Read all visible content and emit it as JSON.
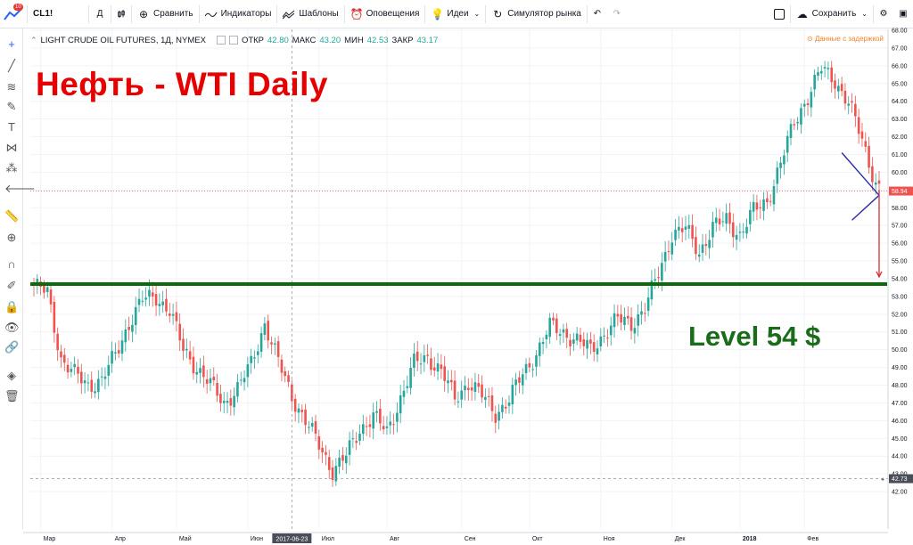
{
  "toolbar": {
    "symbol": "CL1!",
    "interval": "Д",
    "compare_label": "Сравнить",
    "indicators_label": "Индикаторы",
    "templates_label": "Шаблоны",
    "alerts_label": "Оповещения",
    "ideas_label": "Идеи",
    "simulator_label": "Симулятор рынка",
    "save_label": "Сохранить",
    "notification_count": "10"
  },
  "legend": {
    "name": "LIGHT CRUDE OIL FUTURES, 1Д, NYMEX",
    "open_label": "ОТКР",
    "open_value": "42.80",
    "high_label": "МАКС",
    "high_value": "43.20",
    "low_label": "МИН",
    "low_value": "42.53",
    "close_label": "ЗАКР",
    "close_value": "43.17",
    "delay_notice": "Данные с задержкой"
  },
  "annotations": {
    "title": "Нефть - WTI Daily",
    "level_label": "Level 54 $"
  },
  "colors": {
    "up": "#26a69a",
    "down": "#ef5350",
    "level_line": "#0a6b0a",
    "title": "#e60000",
    "delay": "#f0832a"
  },
  "chart_data": {
    "type": "candlestick",
    "symbol": "CL1!",
    "ylim": [
      41.0,
      68.0
    ],
    "yticks": [
      42.0,
      43.0,
      44.0,
      45.0,
      46.0,
      47.0,
      48.0,
      49.0,
      50.0,
      51.0,
      52.0,
      53.0,
      54.0,
      55.0,
      56.0,
      57.0,
      58.0,
      59.0,
      60.0,
      61.0,
      62.0,
      63.0,
      64.0,
      65.0,
      66.0,
      67.0,
      68.0
    ],
    "months": [
      "Мар",
      "Апр",
      "Май",
      "Июн",
      "Июл",
      "Авг",
      "Сен",
      "Окт",
      "Ноя",
      "Дек",
      "2018",
      "Фев"
    ],
    "crosshair_date": "2017-06-23",
    "current_price": "58.94",
    "low_marker_price": "42.73",
    "level_price": 53.7,
    "grid": true,
    "close_path": [
      [
        0,
        53.6
      ],
      [
        4,
        53.2
      ],
      [
        8,
        49.5
      ],
      [
        12,
        48.6
      ],
      [
        16,
        48.0
      ],
      [
        20,
        48.3
      ],
      [
        24,
        49.7
      ],
      [
        28,
        51.5
      ],
      [
        32,
        52.8
      ],
      [
        36,
        53.0
      ],
      [
        40,
        52.2
      ],
      [
        44,
        50.0
      ],
      [
        48,
        49.0
      ],
      [
        52,
        48.0
      ],
      [
        56,
        47.0
      ],
      [
        60,
        47.8
      ],
      [
        64,
        49.2
      ],
      [
        68,
        51.5
      ],
      [
        72,
        49.3
      ],
      [
        76,
        47.4
      ],
      [
        80,
        46.0
      ],
      [
        84,
        44.6
      ],
      [
        88,
        43.2
      ],
      [
        92,
        44.0
      ],
      [
        96,
        45.5
      ],
      [
        100,
        46.3
      ],
      [
        104,
        45.3
      ],
      [
        108,
        47.3
      ],
      [
        112,
        49.2
      ],
      [
        116,
        49.6
      ],
      [
        120,
        48.8
      ],
      [
        124,
        47.2
      ],
      [
        128,
        48.2
      ],
      [
        132,
        47.4
      ],
      [
        136,
        46.4
      ],
      [
        140,
        47.2
      ],
      [
        144,
        48.6
      ],
      [
        148,
        49.8
      ],
      [
        152,
        51.3
      ],
      [
        156,
        51.0
      ],
      [
        160,
        50.5
      ],
      [
        164,
        50.0
      ],
      [
        168,
        50.9
      ],
      [
        172,
        51.7
      ],
      [
        176,
        51.5
      ],
      [
        180,
        52.3
      ],
      [
        184,
        54.3
      ],
      [
        188,
        56.5
      ],
      [
        192,
        56.8
      ],
      [
        196,
        55.5
      ],
      [
        200,
        56.9
      ],
      [
        204,
        57.3
      ],
      [
        208,
        56.5
      ],
      [
        212,
        57.8
      ],
      [
        216,
        58.4
      ],
      [
        220,
        60.5
      ],
      [
        224,
        62.8
      ],
      [
        228,
        64.3
      ],
      [
        232,
        65.8
      ],
      [
        236,
        65.2
      ],
      [
        240,
        63.9
      ],
      [
        244,
        61.8
      ],
      [
        248,
        59.4
      ],
      [
        250,
        58.9
      ]
    ],
    "projection": {
      "from_index": 248,
      "from_price": 59.0,
      "to_price": 54.1
    }
  }
}
